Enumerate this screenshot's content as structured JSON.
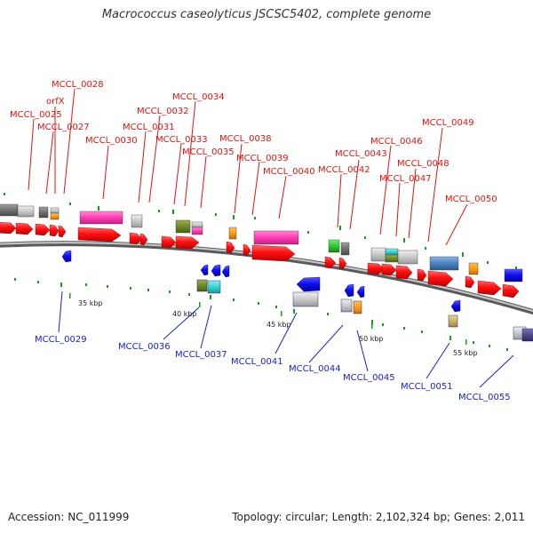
{
  "title": "Macrococcus caseolyticus JSCSC5402, complete genome",
  "footer": {
    "accession": "Accession: NC_011999",
    "topology": "Topology: circular; Length: 2,102,324 bp; Genes: 2,011"
  },
  "colors": {
    "forward_label": "#e0140e",
    "reverse_label": "#1a22c8",
    "forward_cds": "#ff1010",
    "reverse_cds": "#1010ee",
    "backbone": "#8a8a8a",
    "magenta": "#ff3cb4",
    "gray": "#c8c8c8",
    "dark_gray": "#707070",
    "orange": "#ff9a14",
    "olive": "#6e8a28",
    "cyan": "#3cd2d2",
    "green": "#32c832",
    "steel_blue": "#4a84c0",
    "khaki": "#c8b464",
    "purple": "#504a8c"
  },
  "ticks": [
    "35 kbp",
    "40 kbp",
    "45 kbp",
    "50 kbp",
    "55 kbp"
  ],
  "labels": {
    "forward": [
      "MCCL_0028",
      "orfX",
      "MCCL_0025",
      "MCCL_0027",
      "MCCL_0030",
      "MCCL_0031",
      "MCCL_0032",
      "MCCL_0033",
      "MCCL_0034",
      "MCCL_0035",
      "MCCL_0038",
      "MCCL_0039",
      "MCCL_0040",
      "MCCL_0042",
      "MCCL_0043",
      "MCCL_0046",
      "MCCL_0047",
      "MCCL_0048",
      "MCCL_0049",
      "MCCL_0050"
    ],
    "reverse": [
      "MCCL_0029",
      "MCCL_0036",
      "MCCL_0037",
      "MCCL_0041",
      "MCCL_0044",
      "MCCL_0045",
      "MCCL_0051",
      "MCCL_0055"
    ]
  }
}
